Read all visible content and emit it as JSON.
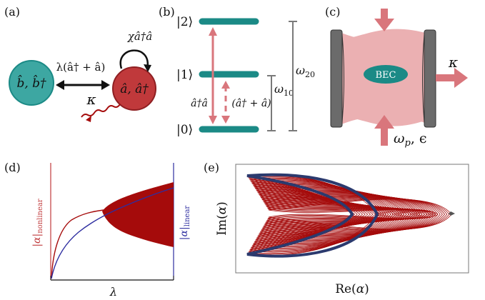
{
  "panels": {
    "a": {
      "label": "(a)",
      "mode_b": "b̂, b̂†",
      "mode_a": "â, â†",
      "coupling": "λ(â† + â)",
      "selfint": "χâ†â",
      "decay": "κ"
    },
    "b": {
      "label": "(b)",
      "levels": [
        "|2⟩",
        "|1⟩",
        "|0⟩"
      ],
      "op_nonlinear": "â†â",
      "op_linear": "(â† + â)",
      "w10": "ω10",
      "w20": "ω20"
    },
    "c": {
      "label": "(c)",
      "bec": "BEC",
      "kappa": "κ",
      "pump": "ωp, ϵ"
    },
    "d": {
      "label": "(d)",
      "xlabel": "λ",
      "ylabel_left": "|α|nonlinear",
      "ylabel_right": "|α|linear"
    },
    "e": {
      "label": "(e)",
      "xlabel": "Re(α)",
      "ylabel": "Im(α)"
    }
  },
  "colors": {
    "teal": "#1b8a86",
    "teal_fill": "#3da7a2",
    "red": "#c0393b",
    "dark_red": "#a50b0b",
    "blue": "#2e2ea0",
    "pink": "#d9767c",
    "cavity": "#ebb0b2",
    "mirror": "#6b6b6b",
    "navy": "#2b3a6e"
  }
}
